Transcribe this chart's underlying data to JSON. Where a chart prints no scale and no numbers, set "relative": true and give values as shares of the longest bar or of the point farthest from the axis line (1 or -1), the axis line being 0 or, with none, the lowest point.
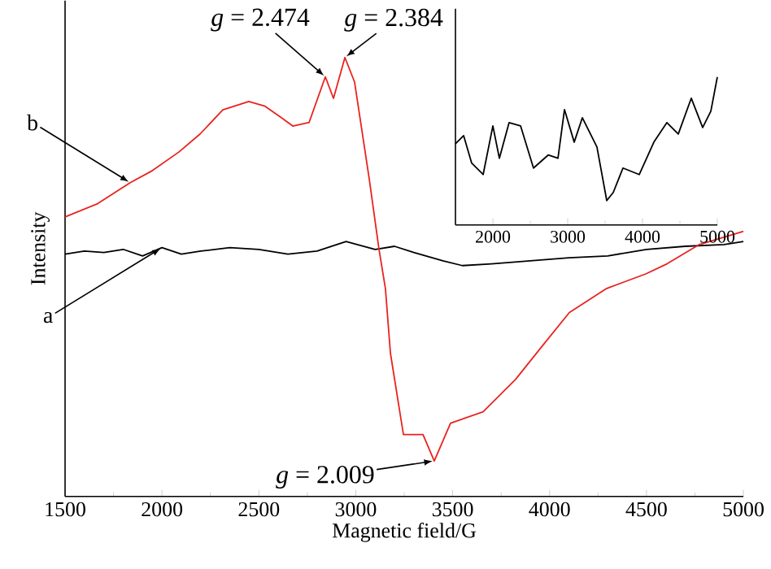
{
  "chart_data": [
    {
      "type": "line",
      "xlabel": "Magnetic field/G",
      "ylabel": "Intensity",
      "relative": true,
      "xlim": [
        1500,
        5000
      ],
      "xticks": [
        1500,
        2000,
        2500,
        3000,
        3500,
        4000,
        4500,
        5000
      ],
      "series": [
        {
          "name": "a",
          "color": "#000000",
          "x": [
            1500,
            1600,
            1700,
            1800,
            1900,
            2000,
            2100,
            2200,
            2350,
            2500,
            2650,
            2800,
            2950,
            3100,
            3200,
            3300,
            3450,
            3550,
            3700,
            3900,
            4100,
            4300,
            4500,
            4700,
            4900,
            5000
          ],
          "values": [
            0.552,
            0.559,
            0.556,
            0.563,
            0.548,
            0.567,
            0.552,
            0.559,
            0.567,
            0.563,
            0.552,
            0.559,
            0.581,
            0.563,
            0.57,
            0.556,
            0.537,
            0.526,
            0.53,
            0.537,
            0.544,
            0.548,
            0.563,
            0.57,
            0.574,
            0.581
          ]
        },
        {
          "name": "b",
          "color": "#e8231f",
          "x": [
            1500,
            1668,
            1836,
            1945,
            2088,
            2197,
            2314,
            2448,
            2532,
            2616,
            2675,
            2759,
            2843,
            2885,
            2944,
            2994,
            3070,
            3120,
            3153,
            3179,
            3246,
            3347,
            3405,
            3489,
            3657,
            3825,
            3959,
            4102,
            4295,
            4496,
            4606,
            4773,
            5000
          ],
          "values": [
            0.637,
            0.667,
            0.715,
            0.741,
            0.785,
            0.826,
            0.881,
            0.9,
            0.889,
            0.863,
            0.844,
            0.852,
            0.956,
            0.907,
            1.0,
            0.944,
            0.722,
            0.563,
            0.474,
            0.326,
            0.141,
            0.141,
            0.081,
            0.167,
            0.193,
            0.267,
            0.341,
            0.419,
            0.474,
            0.507,
            0.53,
            0.574,
            0.604
          ]
        }
      ],
      "annotations": [
        {
          "text": "*g* = 2.474",
          "x": 2843,
          "y": 0.956
        },
        {
          "text": "*g* = 2.384",
          "x": 2944,
          "y": 1.0
        },
        {
          "text": "*g* = 2.009",
          "x": 3405,
          "y": 0.081
        }
      ]
    },
    {
      "type": "line",
      "relative": true,
      "xlim": [
        1500,
        5000
      ],
      "xticks": [
        2000,
        3000,
        4000,
        5000
      ],
      "tick_labels": "x",
      "series": [
        {
          "color": "#000000",
          "x": [
            1500,
            1609,
            1717,
            1870,
            2000,
            2087,
            2217,
            2370,
            2543,
            2739,
            2870,
            2957,
            3087,
            3196,
            3391,
            3522,
            3609,
            3739,
            3957,
            4152,
            4326,
            4478,
            4652,
            4804,
            4913,
            5000
          ],
          "values": [
            0.549,
            0.604,
            0.418,
            0.341,
            0.67,
            0.451,
            0.692,
            0.67,
            0.385,
            0.473,
            0.451,
            0.78,
            0.56,
            0.725,
            0.527,
            0.165,
            0.22,
            0.385,
            0.341,
            0.56,
            0.692,
            0.615,
            0.857,
            0.659,
            0.769,
            1.0
          ]
        }
      ]
    }
  ]
}
